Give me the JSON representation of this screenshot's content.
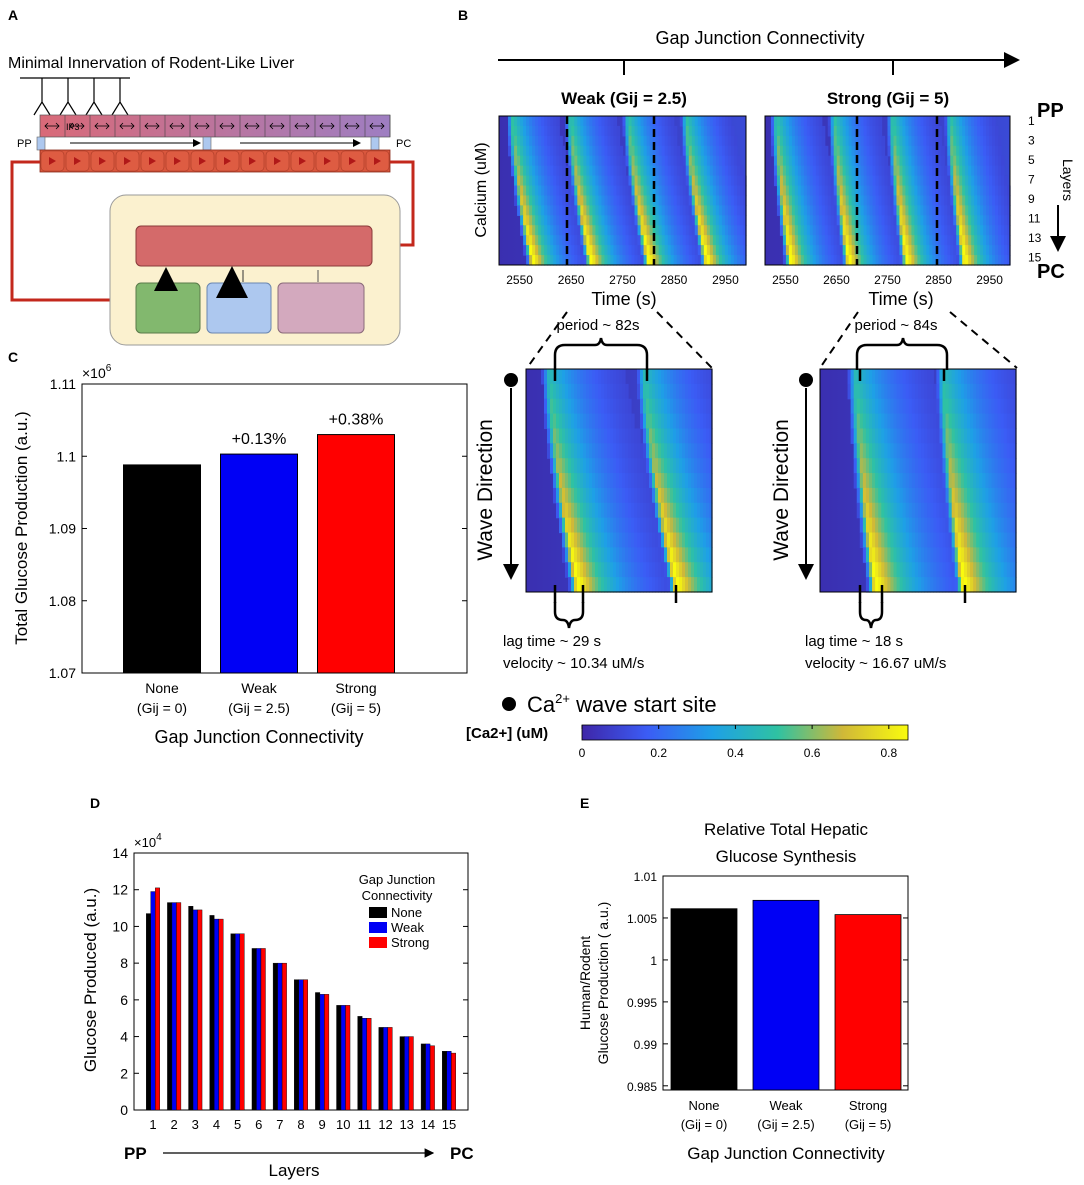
{
  "panels": {
    "A": "A",
    "B": "B",
    "C": "C",
    "D": "D",
    "E": "E"
  },
  "colors": {
    "black": "#000000",
    "blue": "#0000f5",
    "red": "#ff0000",
    "pericentral_lobule": "#d9573d",
    "signal_bar": "#c97a8a",
    "yellow_box": "#fbf1cf",
    "inner_red": "#d46a6a",
    "green": "#82b86e",
    "light_blue": "#adc8ef",
    "mauve": "#d3a9be",
    "arrow_red": "#c3281c"
  },
  "panelA": {
    "title": "Minimal Innervation of Rodent-Like Liver",
    "ip3_label": "IP3",
    "pp_label": "PP",
    "pc_label": "PC"
  },
  "panelB": {
    "header": "Gap Junction Connectivity",
    "weak": {
      "title": "Weak (Gij = 2.5)",
      "period": "period ~ 82s",
      "lag": "lag time ~ 29 s",
      "velocity": "velocity ~ 10.34 uM/s",
      "time_ticks": [
        "2550",
        "2650",
        "2750",
        "2850",
        "2950"
      ]
    },
    "strong": {
      "title": "Strong (Gij = 5)",
      "period": "period ~ 84s",
      "lag": "lag time ~ 18 s",
      "velocity": "velocity ~ 16.67 uM/s",
      "time_ticks": [
        "2550",
        "2650",
        "2750",
        "2850",
        "2950"
      ]
    },
    "ylabel": "Calcium (uM)",
    "xlabel": "Time (s)",
    "wave_direction": "Wave Direction",
    "pp": "PP",
    "pc": "PC",
    "layers_label": "Layers",
    "layer_ticks": [
      "1",
      "3",
      "5",
      "7",
      "9",
      "11",
      "13",
      "15"
    ],
    "legend_start_site": "Ca",
    "legend_superscript": "2+",
    "legend_start_site_rest": " wave start site",
    "colorbar_label": "[Ca2+] (uM)",
    "colorbar_ticks": [
      "0",
      "0.2",
      "0.4",
      "0.6",
      "0.8"
    ]
  },
  "chart_data": [
    {
      "panel": "C",
      "type": "bar",
      "title": "",
      "ylabel": "Total Glucose Production (a.u.)",
      "xlabel": "Gap Junction Connectivity",
      "multiplier": "×10",
      "multiplier_exp": "6",
      "categories": [
        "None",
        "Weak",
        "Strong"
      ],
      "category_sublabels": [
        "(Gij = 0)",
        "(Gij = 2.5)",
        "(Gij = 5)"
      ],
      "values": [
        1.0988,
        1.1003,
        1.103
      ],
      "annotations": [
        "",
        "+0.13%",
        "+0.38%"
      ],
      "ylim": [
        1.07,
        1.11
      ],
      "yticks": [
        "1.07",
        "1.08",
        "1.09",
        "1.1",
        "1.11"
      ]
    },
    {
      "panel": "D",
      "type": "bar",
      "ylabel": "Glucose Produced (a.u.)",
      "xlabel": "Layers",
      "multiplier": "×10",
      "multiplier_exp": "4",
      "legend_title": "Gap Junction Connectivity",
      "categories": [
        "1",
        "2",
        "3",
        "4",
        "5",
        "6",
        "7",
        "8",
        "9",
        "10",
        "11",
        "12",
        "13",
        "14",
        "15"
      ],
      "series": [
        {
          "name": "None",
          "values": [
            10.7,
            11.3,
            11.1,
            10.6,
            9.6,
            8.8,
            8.0,
            7.1,
            6.4,
            5.7,
            5.1,
            4.5,
            4.0,
            3.6,
            3.2
          ]
        },
        {
          "name": "Weak",
          "values": [
            11.9,
            11.3,
            10.9,
            10.4,
            9.6,
            8.8,
            8.0,
            7.1,
            6.3,
            5.7,
            5.0,
            4.5,
            4.0,
            3.6,
            3.2
          ]
        },
        {
          "name": "Strong",
          "values": [
            12.1,
            11.3,
            10.9,
            10.4,
            9.6,
            8.8,
            8.0,
            7.1,
            6.3,
            5.7,
            5.0,
            4.5,
            4.0,
            3.5,
            3.1
          ]
        }
      ],
      "ylim": [
        0,
        14
      ],
      "yticks": [
        "0",
        "2",
        "4",
        "6",
        "8",
        "10",
        "12",
        "14"
      ],
      "pp": "PP",
      "pc": "PC"
    },
    {
      "panel": "E",
      "type": "bar",
      "title": "Relative Total Hepatic Glucose Synthesis",
      "title_lines": [
        "Relative Total Hepatic",
        "Glucose Synthesis"
      ],
      "ylabel_lines": [
        "Human/Rodent",
        "Glucose Production ( a.u.)"
      ],
      "xlabel": "Gap Junction Connectivity",
      "categories": [
        "None",
        "Weak",
        "Strong"
      ],
      "category_sublabels": [
        "(Gij = 0)",
        "(Gij = 2.5)",
        "(Gij = 5)"
      ],
      "values": [
        1.0061,
        1.0071,
        1.0054
      ],
      "ylim": [
        0.9845,
        1.01
      ],
      "yticks": [
        "0.985",
        "0.99",
        "0.995",
        "1",
        "1.005",
        "1.01"
      ]
    }
  ]
}
